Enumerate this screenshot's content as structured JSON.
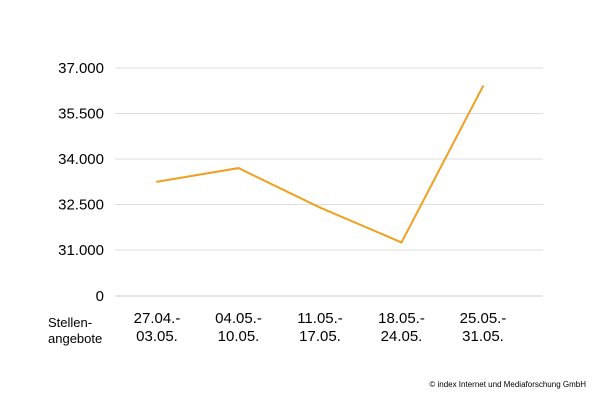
{
  "chart_data": {
    "type": "line",
    "categories": [
      [
        "27.04.-",
        "03.05."
      ],
      [
        "04.05.-",
        "10.05."
      ],
      [
        "11.05.-",
        "17.05."
      ],
      [
        "18.05.-",
        "24.05."
      ],
      [
        "25.05.-",
        "31.05."
      ]
    ],
    "series": [
      {
        "values": [
          33250,
          33700,
          32400,
          31250,
          36400
        ]
      }
    ],
    "yticks": [
      0,
      31000,
      32500,
      34000,
      35500,
      37000
    ],
    "ytick_labels": [
      "0",
      "31.000",
      "32.500",
      "34.000",
      "35.500",
      "37.000"
    ],
    "ylim": [
      31000,
      37000
    ],
    "axis_break": "0 shown below 31.000",
    "row_label": [
      "Stellen-",
      "angebote"
    ],
    "grid": true,
    "line_color": "#f0a020",
    "grid_color": "#dddddd"
  },
  "source": "© index Internet und Mediaforschung GmbH"
}
